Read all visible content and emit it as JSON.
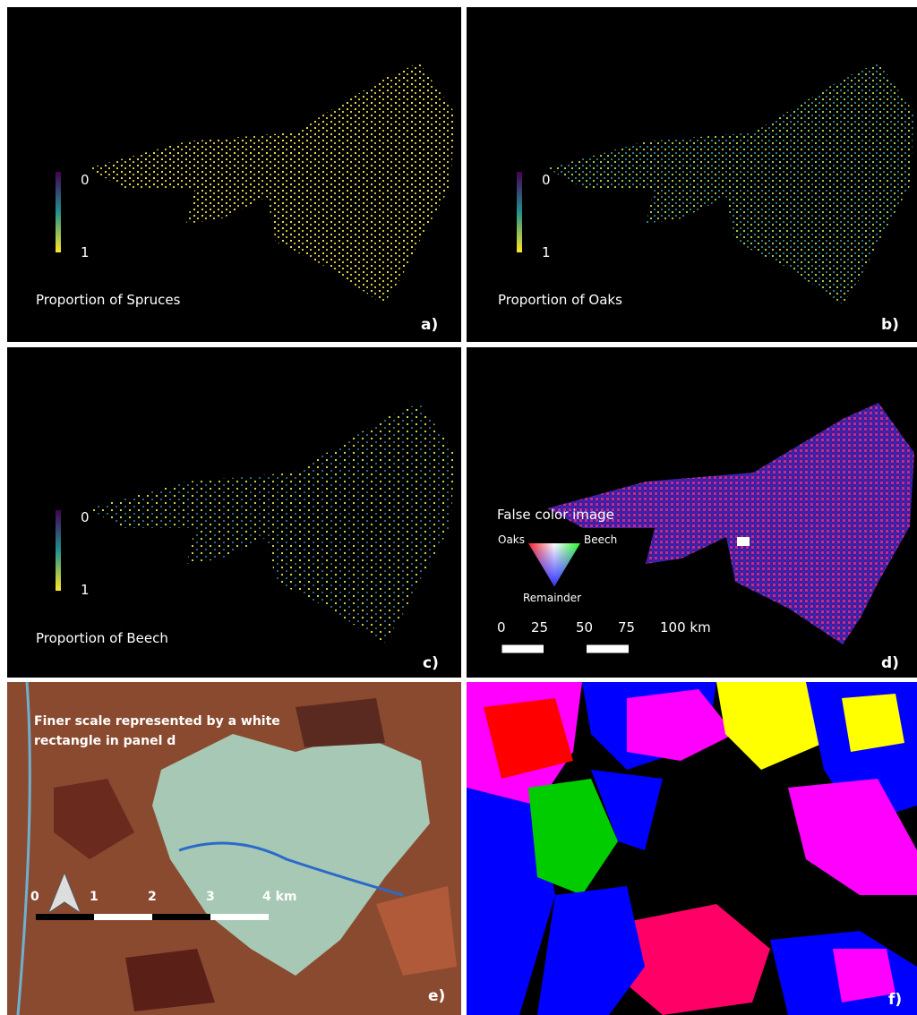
{
  "panels": [
    {
      "label": "a)",
      "legend_title": "Proportion of Spruces",
      "colorbar": {
        "min_label": "0",
        "max_label": "1"
      }
    },
    {
      "label": "b)",
      "legend_title": "Proportion of Oaks",
      "colorbar": {
        "min_label": "0",
        "max_label": "1"
      }
    },
    {
      "label": "c)",
      "legend_title": "Proportion of Beech",
      "colorbar": {
        "min_label": "0",
        "max_label": "1"
      }
    },
    {
      "label": "d)",
      "legend_title": "False color image",
      "ternary": {
        "top_left": "Oaks",
        "top_right": "Beech",
        "bottom": "Remainder"
      },
      "scale_bar": [
        "0",
        "25",
        "50",
        "75",
        "100 km"
      ]
    },
    {
      "label": "e)",
      "note": [
        "Finer scale represented by a white",
        "rectangle in panel d"
      ],
      "scale_bar": [
        "0",
        "1",
        "2",
        "3",
        "4 km"
      ]
    },
    {
      "label": "f)"
    }
  ]
}
